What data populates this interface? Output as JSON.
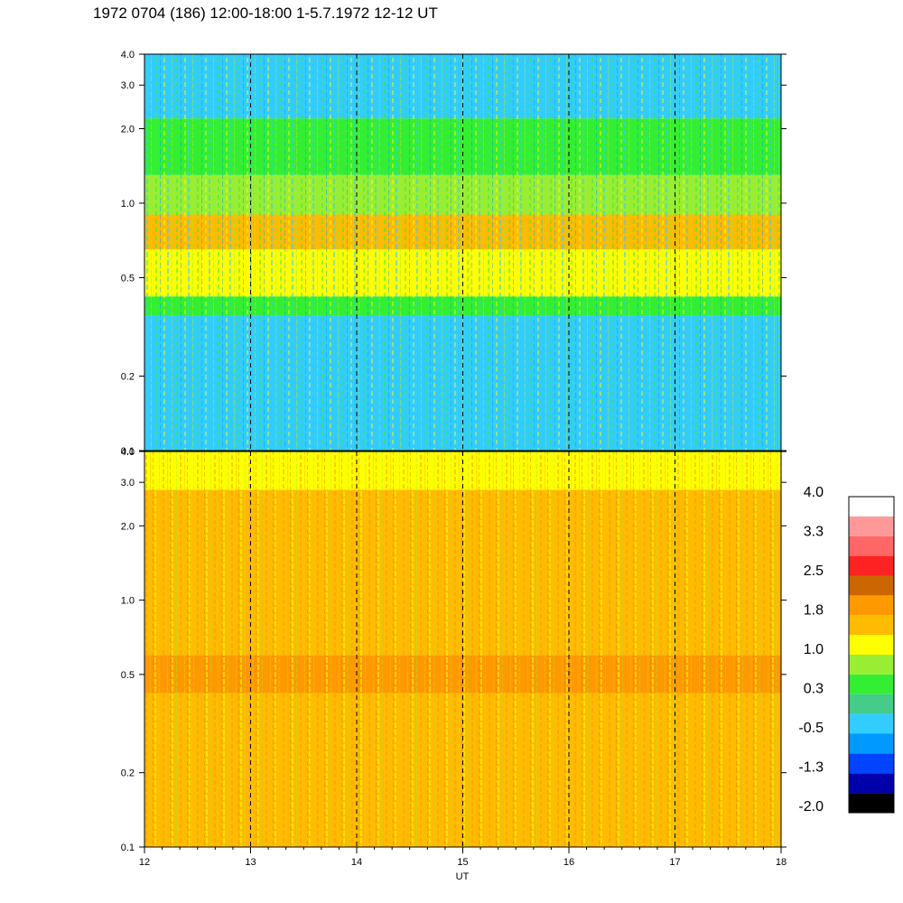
{
  "title": "1972 0704 (186) 12:00-18:00 1-5.7.1972  12-12 UT",
  "chart_data": [
    {
      "type": "heatmap",
      "panel": "upper",
      "xlim": [
        12,
        18
      ],
      "ylim": [
        0.1,
        4.0
      ],
      "yscale": "log",
      "yticks": [
        0.1,
        0.2,
        0.5,
        1.0,
        2.0,
        3.0,
        4.0
      ],
      "ytick_labels": [
        "0.1",
        "0.2",
        "0.5",
        "1.0",
        "2.0",
        "3.0",
        "4.0"
      ],
      "hour_markers": [
        13,
        14,
        15,
        16,
        17
      ],
      "bands": [
        {
          "y": [
            0.1,
            0.35
          ],
          "level": -0.5
        },
        {
          "y": [
            0.35,
            0.42
          ],
          "level": 0.3
        },
        {
          "y": [
            0.42,
            0.65
          ],
          "level": 1.0
        },
        {
          "y": [
            0.65,
            0.9
          ],
          "level": 1.4
        },
        {
          "y": [
            0.9,
            1.3
          ],
          "level": 0.8
        },
        {
          "y": [
            1.3,
            2.2
          ],
          "level": 0.3
        },
        {
          "y": [
            2.2,
            4.0
          ],
          "level": -0.3
        }
      ]
    },
    {
      "type": "heatmap",
      "panel": "lower",
      "xlim": [
        12,
        18
      ],
      "ylim": [
        0.1,
        4.0
      ],
      "yscale": "log",
      "yticks": [
        0.1,
        0.2,
        0.5,
        1.0,
        2.0,
        3.0,
        4.0
      ],
      "ytick_labels": [
        "0.1",
        "0.2",
        "0.5",
        "1.0",
        "2.0",
        "3.0",
        "4.0"
      ],
      "xticks": [
        12,
        13,
        14,
        15,
        16,
        17,
        18
      ],
      "xtick_labels": [
        "12",
        "13",
        "14",
        "15",
        "16",
        "17",
        "18"
      ],
      "xlabel": "UT",
      "hour_markers": [
        13,
        14,
        15,
        16,
        17
      ],
      "bands": [
        {
          "y": [
            0.1,
            0.42
          ],
          "level": 1.4
        },
        {
          "y": [
            0.42,
            0.6
          ],
          "level": 2.0
        },
        {
          "y": [
            0.6,
            2.8
          ],
          "level": 1.6
        },
        {
          "y": [
            2.8,
            4.0
          ],
          "level": 1.0
        }
      ]
    },
    {
      "type": "colorbar",
      "min": -2.0,
      "max": 4.0,
      "labels": [
        "4.0",
        "3.3",
        "2.5",
        "1.8",
        "1.0",
        "0.3",
        "-0.5",
        "-1.3",
        "-2.0"
      ],
      "colors": [
        "#000000",
        "#0000aa",
        "#0044ff",
        "#0099ff",
        "#33ccff",
        "#44cc88",
        "#33ee33",
        "#99ee33",
        "#ffff00",
        "#ffbb00",
        "#ff9900",
        "#cc6600",
        "#ff2222",
        "#ff6666",
        "#ff9999",
        "#ffffff"
      ]
    }
  ]
}
